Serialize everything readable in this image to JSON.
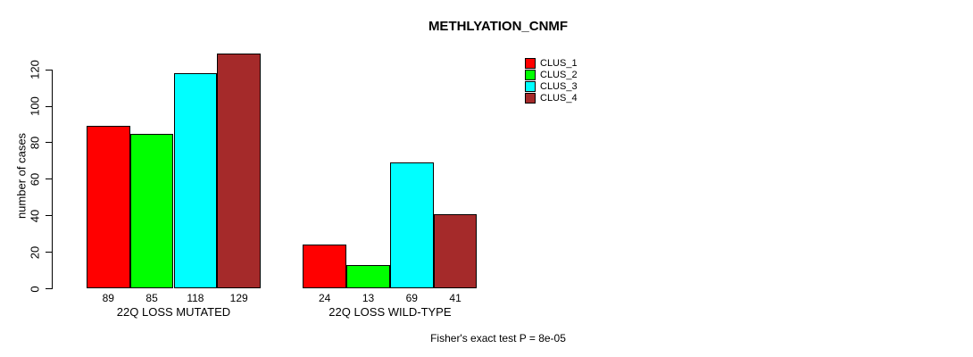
{
  "chart_data": {
    "type": "bar",
    "title": "METHLYATION_CNMF",
    "ylabel": "number of cases",
    "xlabel": "",
    "ylim": [
      0,
      120
    ],
    "yticks": [
      0,
      20,
      40,
      60,
      80,
      100,
      120
    ],
    "grid": false,
    "legend_position": "top-right",
    "categories": [
      "22Q LOSS MUTATED",
      "22Q LOSS WILD-TYPE"
    ],
    "series": [
      {
        "name": "CLUS_1",
        "color": "#FF0000",
        "values": [
          89,
          24
        ]
      },
      {
        "name": "CLUS_2",
        "color": "#00FF00",
        "values": [
          85,
          13
        ]
      },
      {
        "name": "CLUS_3",
        "color": "#00FFFF",
        "values": [
          118,
          69
        ]
      },
      {
        "name": "CLUS_4",
        "color": "#A52A2A",
        "values": [
          129,
          41
        ]
      }
    ],
    "bar_value_labels": [
      [
        89,
        85,
        118,
        129
      ],
      [
        24,
        13,
        69,
        41
      ]
    ],
    "footnote": "Fisher's exact test P = 8e-05"
  }
}
